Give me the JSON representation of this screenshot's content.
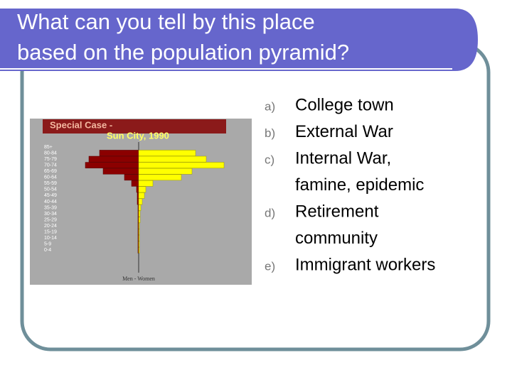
{
  "title": [
    "What can you tell by this place",
    "based on the population pyramid?"
  ],
  "figure": {
    "title": "Special Case -",
    "subtitle": "Sun City, 1990",
    "age_groups": [
      "85+",
      "80-84",
      "75-79",
      "70-74",
      "65-69",
      "60-64",
      "55-59",
      "50-54",
      "45-49",
      "40-44",
      "35-39",
      "30-34",
      "25-29",
      "20-24",
      "15-19",
      "10-14",
      "5-9",
      "0-4"
    ],
    "men": [
      0,
      55,
      70,
      75,
      50,
      20,
      10,
      3,
      2,
      2,
      1,
      1,
      1,
      1,
      1,
      1,
      1,
      1
    ],
    "women": [
      0,
      80,
      95,
      120,
      75,
      60,
      20,
      10,
      8,
      5,
      3,
      2,
      2,
      1,
      1,
      1,
      1,
      1
    ],
    "axis_label": "Men - Women"
  },
  "options": [
    {
      "letter": "a)",
      "lines": [
        "College town"
      ]
    },
    {
      "letter": "b)",
      "lines": [
        "External War"
      ]
    },
    {
      "letter": "c)",
      "lines": [
        "Internal War,",
        "famine, epidemic"
      ]
    },
    {
      "letter": "d)",
      "lines": [
        "Retirement",
        "community"
      ]
    },
    {
      "letter": "e)",
      "lines": [
        "Immigrant workers"
      ]
    }
  ]
}
